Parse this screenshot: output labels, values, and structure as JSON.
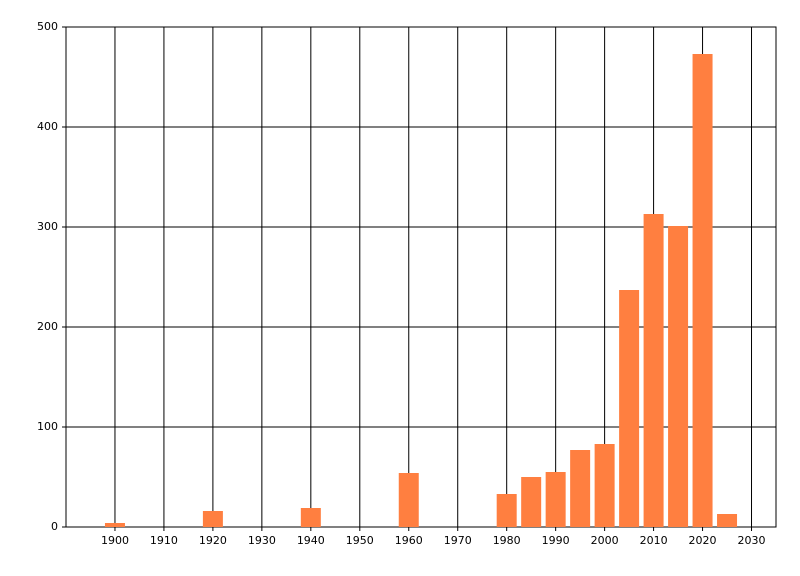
{
  "chart_data": {
    "type": "bar",
    "x": [
      1900,
      1920,
      1940,
      1960,
      1980,
      1985,
      1990,
      1995,
      2000,
      2005,
      2010,
      2015,
      2020,
      2025
    ],
    "values": [
      4,
      16,
      19,
      54,
      33,
      50,
      55,
      77,
      83,
      237,
      313,
      301,
      473,
      13
    ],
    "color": "#ff7f40",
    "xlim": [
      1890,
      2035
    ],
    "xticks": [
      1900,
      1910,
      1920,
      1930,
      1940,
      1950,
      1960,
      1970,
      1980,
      1990,
      2000,
      2010,
      2020,
      2030
    ],
    "ylim": [
      0,
      500
    ],
    "yticks": [
      0,
      100,
      200,
      300,
      400,
      500
    ],
    "grid": true
  }
}
